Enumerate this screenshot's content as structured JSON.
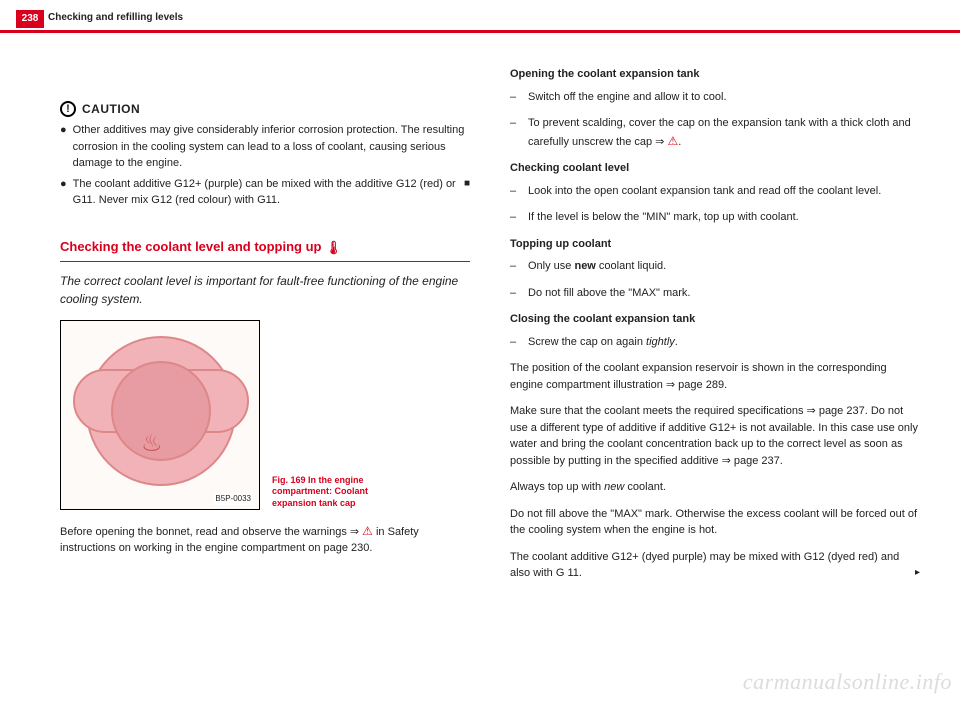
{
  "header": {
    "page_number": "238",
    "title": "Checking and refilling levels"
  },
  "left": {
    "caution_label": "CAUTION",
    "caution_icon_glyph": "!",
    "caution_bullets": [
      "Other additives may give considerably inferior corrosion protection. The resulting corrosion in the cooling system can lead to a loss of coolant, causing serious damage to the engine.",
      "The coolant additive G12+ (purple) can be mixed with the additive G12 (red) or G11. Never mix G12 (red colour) with G11."
    ],
    "section_title": "Checking the coolant level and topping up",
    "intro": "The correct coolant level is important for fault-free functioning of the engine cooling system.",
    "figure_label": "B5P-0033",
    "figure_caption": "Fig. 169  In the engine compartment: Coolant expansion tank cap",
    "after_fig": "Before opening the bonnet, read and observe the warnings ⇒ ",
    "after_fig_2": " in Safety instructions on working in the engine compartment on page 230."
  },
  "right": {
    "open_head": "Opening the coolant expansion tank",
    "open_items": [
      "Switch off the engine and allow it to cool.",
      "To prevent scalding, cover the cap on the expansion tank with a thick cloth and carefully unscrew the cap  ⇒"
    ],
    "check_head": "Checking coolant level",
    "check_items": [
      "Look into the open coolant expansion tank and read off the coolant level.",
      "If the level is below the \"MIN\" mark, top up with coolant."
    ],
    "top_head": "Topping up coolant",
    "top_items_pre": "Only use ",
    "top_items_bold": "new",
    "top_items_post": " coolant liquid.",
    "top_item2": "Do not fill above the \"MAX\" mark.",
    "close_head": "Closing the coolant expansion tank",
    "close_item_pre": "Screw the cap on again ",
    "close_item_em": "tightly",
    "close_item_post": ".",
    "body1": "The position of the coolant expansion reservoir is shown in the corresponding engine compartment illustration ⇒ page 289.",
    "body2": "Make sure that the coolant meets the required specifications ⇒ page 237. Do not use a different type of additive if additive G12+ is not available. In this case use only water and bring the coolant concentration back up to the correct level as soon as possible by putting in the specified additive ⇒ page 237.",
    "body3_pre": "Always top up with ",
    "body3_em": "new",
    "body3_post": " coolant.",
    "body4": "Do not fill above the \"MAX\" mark. Otherwise the excess coolant will be forced out of the cooling system when the engine is hot.",
    "body5": "The coolant additive G12+ (dyed purple) may be mixed with G12 (dyed red) and also with G 11."
  },
  "watermark": "carmanualsonline.info",
  "glyphs": {
    "warn": "⚠",
    "thermo": "🌡",
    "block": "■",
    "cont": "▸"
  }
}
